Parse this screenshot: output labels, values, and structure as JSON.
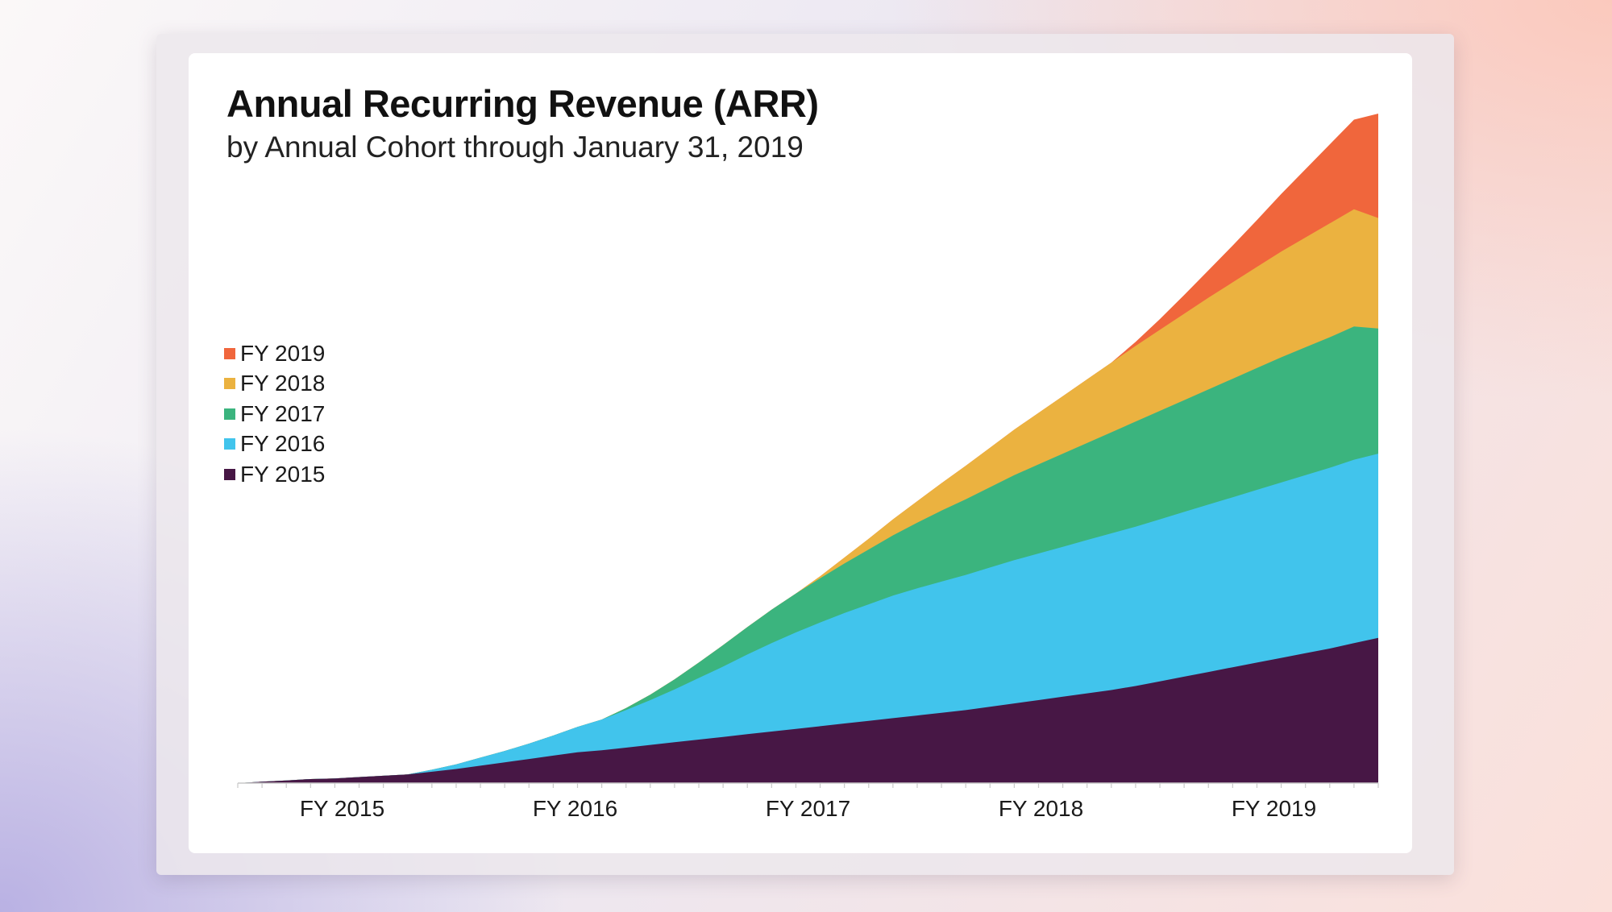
{
  "chart_data": {
    "type": "area",
    "stacked": true,
    "title": "Annual Recurring Revenue (ARR)",
    "subtitle": "by Annual Cohort through January 31, 2019",
    "legend_position": "left",
    "grid": false,
    "x_start": "FY 2015 Q1",
    "x_ticks": [
      "FY 2015",
      "FY 2016",
      "FY 2017",
      "FY 2018",
      "FY 2019"
    ],
    "ylim": [
      0,
      100
    ],
    "series": [
      {
        "name": "FY 2015",
        "color": "#471745",
        "values": [
          0,
          0.2,
          0.4,
          0.6,
          0.7,
          0.9,
          1.1,
          1.3,
          1.7,
          2.1,
          2.6,
          3.1,
          3.6,
          4.1,
          4.6,
          4.9,
          5.3,
          5.7,
          6.1,
          6.5,
          6.9,
          7.3,
          7.7,
          8.1,
          8.5,
          8.9,
          9.3,
          9.7,
          10.1,
          10.5,
          10.9,
          11.4,
          11.9,
          12.4,
          12.9,
          13.4,
          13.9,
          14.5,
          15.2,
          15.9,
          16.6,
          17.3,
          18.0,
          18.7,
          19.4,
          20.1,
          20.9,
          21.7
        ]
      },
      {
        "name": "FY 2016",
        "color": "#41c4ec",
        "values": [
          0,
          0,
          0,
          0,
          0,
          0,
          0,
          0,
          0.3,
          0.7,
          1.2,
          1.7,
          2.3,
          3.0,
          3.8,
          4.6,
          5.6,
          6.7,
          7.9,
          9.2,
          10.5,
          11.9,
          13.2,
          14.4,
          15.5,
          16.5,
          17.4,
          18.3,
          19.0,
          19.6,
          20.2,
          20.8,
          21.4,
          21.9,
          22.4,
          22.9,
          23.4,
          23.8,
          24.2,
          24.6,
          25.0,
          25.4,
          25.8,
          26.2,
          26.6,
          27.0,
          27.4,
          27.5
        ]
      },
      {
        "name": "FY 2017",
        "color": "#3bb47e",
        "values": [
          0,
          0,
          0,
          0,
          0,
          0,
          0,
          0,
          0,
          0,
          0,
          0,
          0,
          0,
          0,
          0,
          0.3,
          0.8,
          1.5,
          2.3,
          3.2,
          4.1,
          5.0,
          5.8,
          6.6,
          7.4,
          8.2,
          9.0,
          9.8,
          10.6,
          11.3,
          12.0,
          12.7,
          13.3,
          13.9,
          14.5,
          15.1,
          15.7,
          16.2,
          16.7,
          17.2,
          17.7,
          18.2,
          18.7,
          19.1,
          19.5,
          19.9,
          18.7
        ]
      },
      {
        "name": "FY 2018",
        "color": "#ebb240",
        "values": [
          0,
          0,
          0,
          0,
          0,
          0,
          0,
          0,
          0,
          0,
          0,
          0,
          0,
          0,
          0,
          0,
          0,
          0,
          0,
          0,
          0,
          0,
          0,
          0,
          0.3,
          0.9,
          1.6,
          2.4,
          3.2,
          4.1,
          5.0,
          5.9,
          6.8,
          7.7,
          8.6,
          9.5,
          10.4,
          11.3,
          12.1,
          12.9,
          13.7,
          14.4,
          15.1,
          15.8,
          16.4,
          17.0,
          17.5,
          16.5
        ]
      },
      {
        "name": "FY 2019",
        "color": "#f0663c",
        "values": [
          0,
          0,
          0,
          0,
          0,
          0,
          0,
          0,
          0,
          0,
          0,
          0,
          0,
          0,
          0,
          0,
          0,
          0,
          0,
          0,
          0,
          0,
          0,
          0,
          0,
          0,
          0,
          0,
          0,
          0,
          0,
          0,
          0,
          0,
          0,
          0,
          0,
          0.6,
          1.6,
          2.8,
          4.1,
          5.5,
          7.0,
          8.6,
          10.2,
          11.8,
          13.4,
          15.6
        ]
      }
    ]
  }
}
